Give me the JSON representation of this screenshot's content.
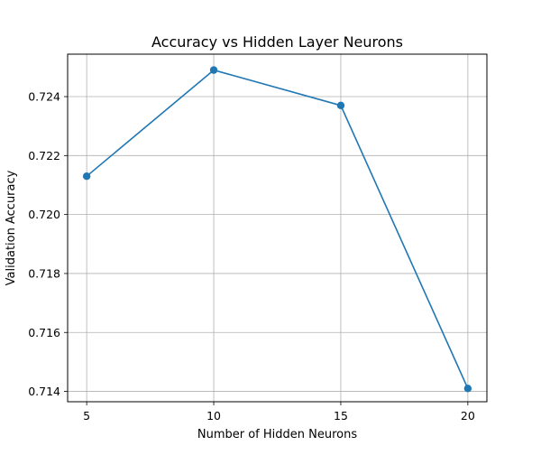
{
  "chart_data": {
    "type": "line",
    "title": "Accuracy vs Hidden Layer Neurons",
    "xlabel": "Number of Hidden Neurons",
    "ylabel": "Validation Accuracy",
    "x": [
      5,
      10,
      15,
      20
    ],
    "series": [
      {
        "values": [
          0.7213,
          0.7249,
          0.7237,
          0.7141
        ],
        "color": "#1f77b4",
        "marker": "circle"
      }
    ],
    "xticks": [
      "5",
      "10",
      "15",
      "20"
    ],
    "yticks": [
      "0.714",
      "0.716",
      "0.718",
      "0.720",
      "0.722",
      "0.724"
    ],
    "xlim": [
      4.25,
      20.75
    ],
    "ylim": [
      0.71365,
      0.72544
    ],
    "grid": true,
    "colors": {
      "line": "#1f77b4",
      "grid": "#b0b0b0",
      "axes": "#000000"
    }
  }
}
